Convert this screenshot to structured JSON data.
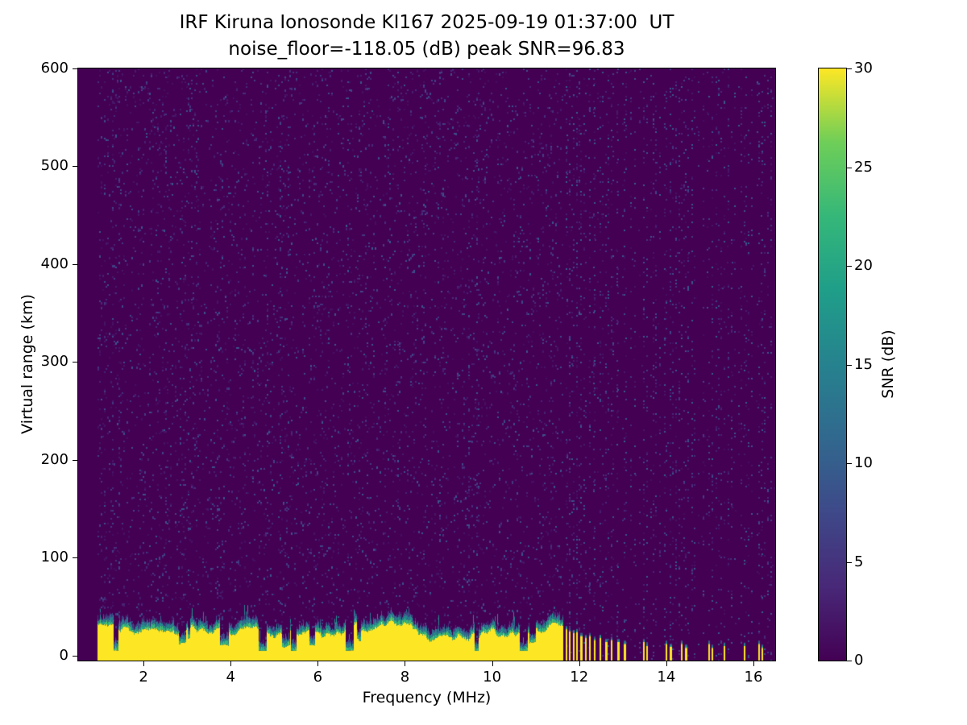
{
  "chart_data": {
    "type": "heatmap",
    "title": "IRF Kiruna Ionosonde KI167 2025-09-19 01:37:00  UT",
    "subtitle": "noise_floor=-118.05 (dB) peak SNR=96.83",
    "xlabel": "Frequency (MHz)",
    "ylabel": "Virtual range (km)",
    "colorbar_label": "SNR (dB)",
    "station": "KI167",
    "timestamp_ut": "2025-09-19 01:37:00",
    "noise_floor_db": -118.05,
    "peak_snr_db": 96.83,
    "xlim": [
      0.5,
      16.5
    ],
    "ylim": [
      -5,
      600
    ],
    "x_ticks": [
      2,
      4,
      6,
      8,
      10,
      12,
      14,
      16
    ],
    "y_ticks": [
      0,
      100,
      200,
      300,
      400,
      500,
      600
    ],
    "colorbar_ticks": [
      0,
      5,
      10,
      15,
      20,
      25,
      30
    ],
    "colorbar_range": [
      0,
      30
    ],
    "colormap": "viridis",
    "colormap_stops": [
      "#440154",
      "#482878",
      "#3e4989",
      "#31688e",
      "#26828e",
      "#1f9e89",
      "#35b779",
      "#6ece58",
      "#fde725"
    ],
    "ground_band": {
      "f_start": 0.95,
      "f_end": 11.62,
      "mean_top_km": 26,
      "min_top_km": 5,
      "max_top_km": 46
    },
    "hf_stripes": [
      [
        11.69,
        27
      ],
      [
        11.77,
        25
      ],
      [
        11.85,
        23
      ],
      [
        11.94,
        24
      ],
      [
        12.03,
        20
      ],
      [
        12.13,
        18
      ],
      [
        12.23,
        20
      ],
      [
        12.34,
        16
      ],
      [
        12.46,
        18
      ],
      [
        12.59,
        14
      ],
      [
        12.73,
        16
      ],
      [
        12.87,
        14
      ],
      [
        13.02,
        12
      ],
      [
        13.46,
        14
      ],
      [
        13.54,
        10
      ],
      [
        13.98,
        12
      ],
      [
        14.07,
        9
      ],
      [
        14.33,
        12
      ],
      [
        14.42,
        8
      ],
      [
        14.96,
        12
      ],
      [
        15.04,
        8
      ],
      [
        15.31,
        10
      ],
      [
        15.78,
        10
      ],
      [
        16.11,
        12
      ],
      [
        16.19,
        8
      ]
    ],
    "noise": {
      "seed": 1337,
      "dense_density": 0.048,
      "hf_col_start": 11.7,
      "hf_col_end": 16.45,
      "hf_col_step": 0.085,
      "hf_gap_density": 0.006
    }
  }
}
